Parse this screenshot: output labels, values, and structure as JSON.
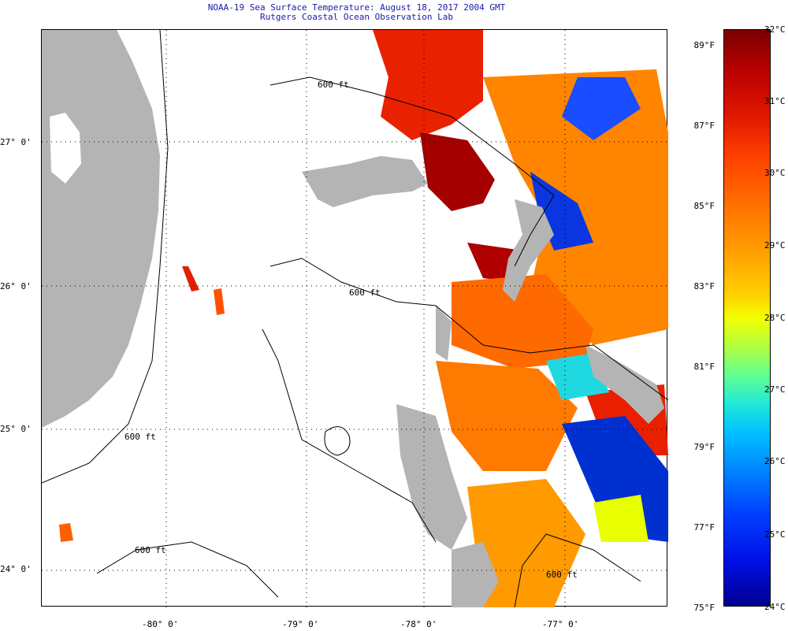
{
  "header": {
    "title_line1": "NOAA-19 Sea Surface Temperature:  August 18, 2017 2004 GMT",
    "title_line2": "Rutgers Coastal Ocean Observation Lab"
  },
  "map": {
    "lat_labels": [
      "27° 0'",
      "26° 0'",
      "25° 0'",
      "24° 0'"
    ],
    "lon_labels": [
      "-80° 0'",
      "-79° 0'",
      "-78° 0'",
      "-77° 0'"
    ],
    "contour_labels": [
      "600 ft",
      "600 ft",
      "600 ft",
      "600 ft",
      "600 ft"
    ]
  },
  "colorbar": {
    "fahrenheit": [
      "89°F",
      "87°F",
      "85°F",
      "83°F",
      "81°F",
      "79°F",
      "77°F",
      "75°F"
    ],
    "celsius": [
      "32°C",
      "31°C",
      "30°C",
      "29°C",
      "28°C",
      "27°C",
      "26°C",
      "25°C",
      "24°C"
    ]
  },
  "colors": {
    "land": "#b4b4b4",
    "title": "#1a1aa8",
    "warm": "#b40000",
    "hot": "#ff3000",
    "orange": "#ff8000",
    "cool": "#0030d0"
  }
}
